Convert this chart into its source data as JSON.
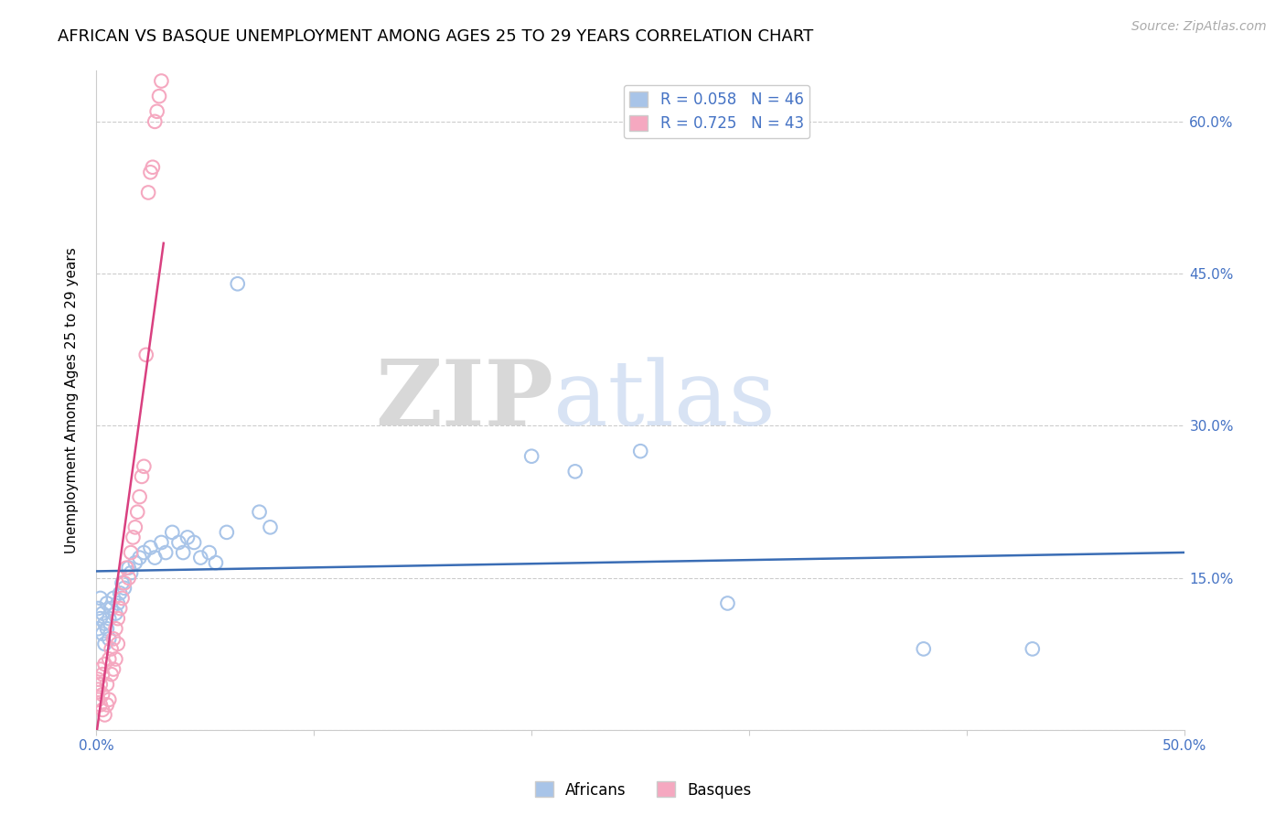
{
  "title": "AFRICAN VS BASQUE UNEMPLOYMENT AMONG AGES 25 TO 29 YEARS CORRELATION CHART",
  "source": "Source: ZipAtlas.com",
  "ylabel": "Unemployment Among Ages 25 to 29 years",
  "xlim": [
    0.0,
    0.5
  ],
  "ylim": [
    0.0,
    0.65
  ],
  "xtick_positions": [
    0.0,
    0.1,
    0.2,
    0.3,
    0.4,
    0.5
  ],
  "xtick_labels": [
    "0.0%",
    "",
    "",
    "",
    "",
    "50.0%"
  ],
  "ytick_positions": [
    0.0,
    0.15,
    0.3,
    0.45,
    0.6
  ],
  "ytick_labels_right": [
    "",
    "15.0%",
    "30.0%",
    "45.0%",
    "60.0%"
  ],
  "grid_color": "#cccccc",
  "background_color": "#ffffff",
  "watermark_zip": "ZIP",
  "watermark_atlas": "atlas",
  "african_color": "#a8c4e8",
  "basque_color": "#f5a8c0",
  "african_line_color": "#3a6db5",
  "basque_line_color": "#d94080",
  "legend_label_african": "R = 0.058   N = 46",
  "legend_label_basque": "R = 0.725   N = 43",
  "africans_x": [
    0.001,
    0.001,
    0.002,
    0.002,
    0.003,
    0.003,
    0.004,
    0.004,
    0.005,
    0.005,
    0.006,
    0.006,
    0.007,
    0.008,
    0.009,
    0.01,
    0.011,
    0.012,
    0.013,
    0.015,
    0.016,
    0.018,
    0.02,
    0.022,
    0.025,
    0.027,
    0.03,
    0.032,
    0.035,
    0.038,
    0.04,
    0.042,
    0.045,
    0.048,
    0.052,
    0.055,
    0.06,
    0.065,
    0.075,
    0.08,
    0.2,
    0.22,
    0.25,
    0.29,
    0.38,
    0.43
  ],
  "africans_y": [
    0.12,
    0.1,
    0.13,
    0.11,
    0.115,
    0.095,
    0.105,
    0.085,
    0.125,
    0.1,
    0.11,
    0.09,
    0.12,
    0.13,
    0.115,
    0.125,
    0.135,
    0.145,
    0.14,
    0.16,
    0.155,
    0.165,
    0.17,
    0.175,
    0.18,
    0.17,
    0.185,
    0.175,
    0.195,
    0.185,
    0.175,
    0.19,
    0.185,
    0.17,
    0.175,
    0.165,
    0.195,
    0.44,
    0.215,
    0.2,
    0.27,
    0.255,
    0.275,
    0.125,
    0.08,
    0.08
  ],
  "basques_x": [
    0.001,
    0.001,
    0.001,
    0.002,
    0.002,
    0.002,
    0.003,
    0.003,
    0.003,
    0.004,
    0.004,
    0.005,
    0.005,
    0.006,
    0.006,
    0.007,
    0.007,
    0.008,
    0.008,
    0.009,
    0.009,
    0.01,
    0.01,
    0.011,
    0.012,
    0.013,
    0.014,
    0.015,
    0.016,
    0.017,
    0.018,
    0.019,
    0.02,
    0.021,
    0.022,
    0.023,
    0.024,
    0.025,
    0.026,
    0.027,
    0.028,
    0.029,
    0.03
  ],
  "basques_y": [
    0.05,
    0.04,
    0.03,
    0.06,
    0.045,
    0.025,
    0.055,
    0.035,
    0.02,
    0.065,
    0.015,
    0.045,
    0.025,
    0.07,
    0.03,
    0.055,
    0.08,
    0.06,
    0.09,
    0.07,
    0.1,
    0.085,
    0.11,
    0.12,
    0.13,
    0.145,
    0.16,
    0.15,
    0.175,
    0.19,
    0.2,
    0.215,
    0.23,
    0.25,
    0.26,
    0.37,
    0.53,
    0.55,
    0.555,
    0.6,
    0.61,
    0.625,
    0.64
  ],
  "title_fontsize": 13,
  "axis_label_fontsize": 11,
  "tick_fontsize": 11,
  "legend_fontsize": 12,
  "source_fontsize": 10
}
